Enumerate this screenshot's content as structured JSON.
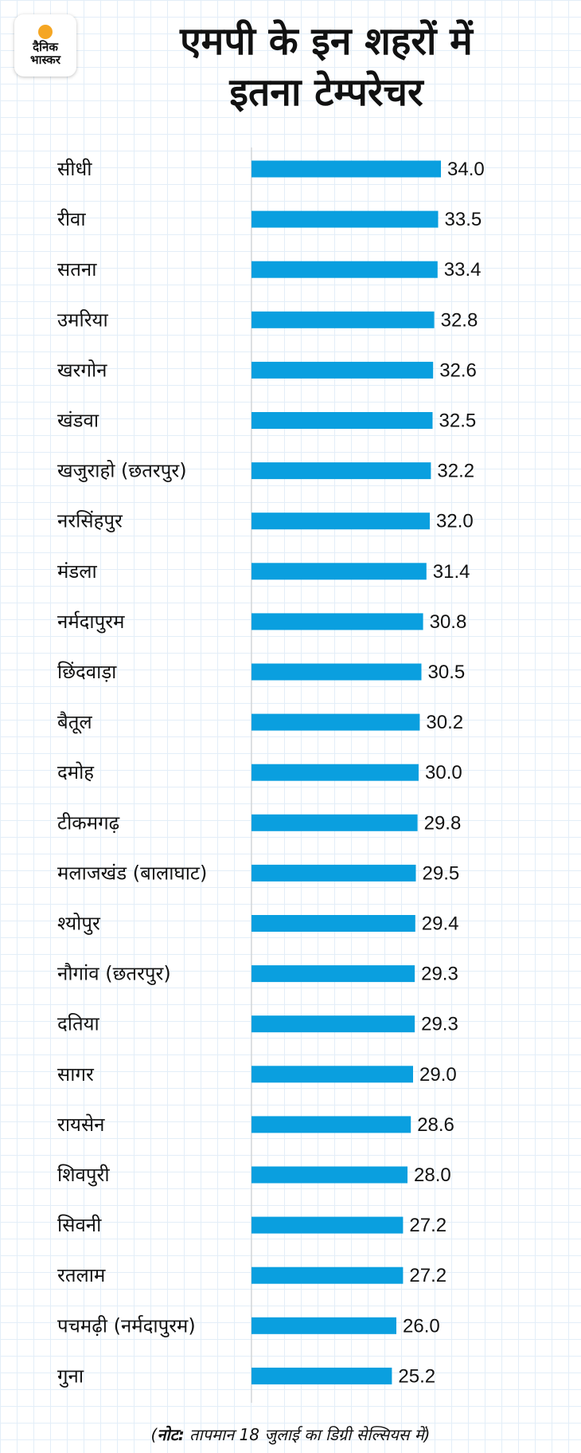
{
  "brand": {
    "line1": "दैनिक",
    "line2": "भास्कर",
    "accent": "#f5a623"
  },
  "title": {
    "line1": "एमपी के इन शहरों में",
    "line2": "इतना टेम्परेचर"
  },
  "note": {
    "label": "नोट:",
    "text": "तापमान 18 जुलाई का डिग्री सेल्सियस में"
  },
  "chart_data": {
    "type": "bar",
    "orientation": "horizontal",
    "bar_color": "#0a9fdf",
    "categories": [
      "सीधी",
      "रीवा",
      "सतना",
      "उमरिया",
      "खरगोन",
      "खंडवा",
      "खजुराहो (छतरपुर)",
      "नरसिंहपुर",
      "मंडला",
      "नर्मदापुरम",
      "छिंदवाड़ा",
      "बैतूल",
      "दमोह",
      "टीकमगढ़",
      "मलाजखंड (बालाघाट)",
      "श्योपुर",
      "नौगांव (छतरपुर)",
      "दतिया",
      "सागर",
      "रायसेन",
      "शिवपुरी",
      "सिवनी",
      "रतलाम",
      "पचमढ़ी (नर्मदापुरम)",
      "गुना"
    ],
    "values": [
      34.0,
      33.5,
      33.4,
      32.8,
      32.6,
      32.5,
      32.2,
      32.0,
      31.4,
      30.8,
      30.5,
      30.2,
      30.0,
      29.8,
      29.5,
      29.4,
      29.3,
      29.3,
      29.0,
      28.6,
      28.0,
      27.2,
      27.2,
      26.0,
      25.2
    ],
    "value_labels": [
      "34.0",
      "33.5",
      "33.4",
      "32.8",
      "32.6",
      "32.5",
      "32.2",
      "32.0",
      "31.4",
      "30.8",
      "30.5",
      "30.2",
      "30.0",
      "29.8",
      "29.5",
      "29.4",
      "29.3",
      "29.3",
      "29.0",
      "28.6",
      "28.0",
      "27.2",
      "27.2",
      "26.0",
      "25.2"
    ],
    "xlim": [
      0,
      34.0
    ],
    "grid": true,
    "legend": "none"
  }
}
